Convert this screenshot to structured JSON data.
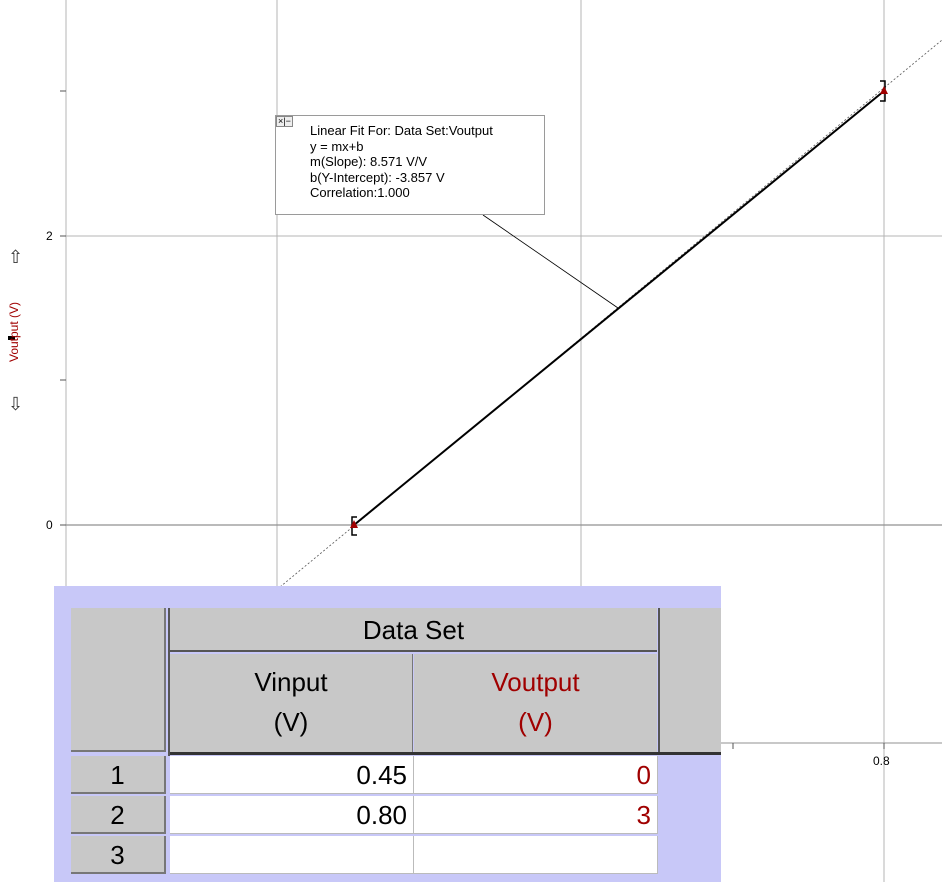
{
  "graph": {
    "x_ticks": [
      "0.8"
    ],
    "y_ticks": [
      "0",
      "2"
    ],
    "y_axis_title": "Voutput (V)",
    "colors": {
      "line": "#000000",
      "point": "#a00000",
      "grid": "#b4b4b4"
    }
  },
  "chart_data": {
    "type": "line",
    "series": [
      {
        "name": "Voutput",
        "x": [
          0.45,
          0.8
        ],
        "y": [
          0,
          3
        ]
      }
    ],
    "fit": {
      "slope": 8.571,
      "intercept": -3.857
    }
  },
  "fit_box": {
    "controls": "×|−",
    "line1": "Linear Fit For:  Data Set:Voutput",
    "line2": "y = mx+b",
    "line3": "m(Slope): 8.571 V/V",
    "line4": "b(Y-Intercept): -3.857 V",
    "line5": "Correlation:1.000"
  },
  "table": {
    "group": "Data Set",
    "col1_name": "Vinput",
    "col1_unit": "(V)",
    "col2_name": "Voutput",
    "col2_unit": "(V)",
    "rows": [
      {
        "num": "1",
        "vin": "0.45",
        "vout": "0"
      },
      {
        "num": "2",
        "vin": "0.80",
        "vout": "3"
      },
      {
        "num": "3",
        "vin": "",
        "vout": ""
      }
    ]
  }
}
